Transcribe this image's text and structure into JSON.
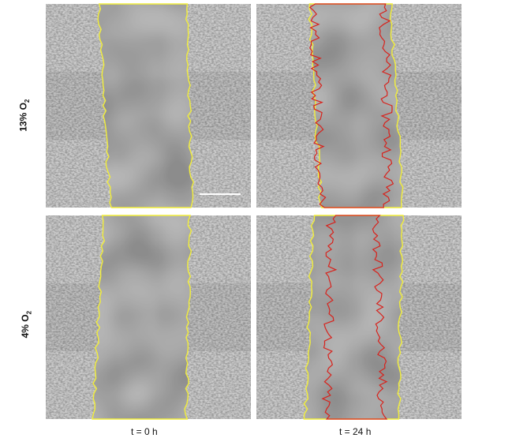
{
  "rows": [
    {
      "label": "13% O",
      "subscript": "2"
    },
    {
      "label": "4% O",
      "subscript": "2"
    }
  ],
  "columns": [
    {
      "label": "t = 0 h"
    },
    {
      "label": "t = 24 h"
    }
  ],
  "colors": {
    "initial_wound_edge": "#f2ee3a",
    "migrated_front": "#d8221c",
    "scale_bar": "#ffffff",
    "cell_background": "#9a9a9a",
    "wound_area": "#8c8c8c"
  },
  "panels": [
    {
      "row": 0,
      "col": 0,
      "has_scale_bar": true,
      "has_red_outline": false
    },
    {
      "row": 0,
      "col": 1,
      "has_scale_bar": false,
      "has_red_outline": true
    },
    {
      "row": 1,
      "col": 0,
      "has_scale_bar": false,
      "has_red_outline": false
    },
    {
      "row": 1,
      "col": 1,
      "has_scale_bar": false,
      "has_red_outline": true
    }
  ]
}
